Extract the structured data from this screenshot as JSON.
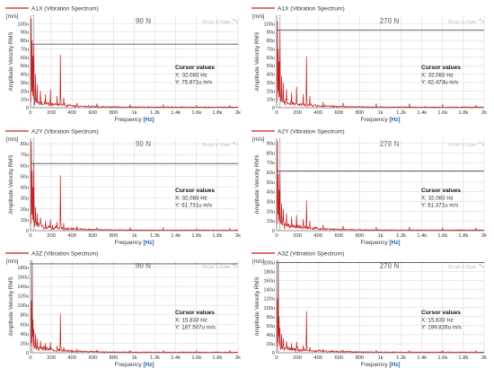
{
  "chart_data": [
    {
      "type": "line",
      "legend_label": "A1X (Vibration Spectrum)",
      "title": "90 N",
      "brand": "Brüel & Kjær",
      "unit": "[m/s]",
      "ylabel": "Amplitude Velocity RMS",
      "xlabel_prefix": "Frequency ",
      "xlabel_unit": "[Hz]",
      "xlim": [
        0,
        2000
      ],
      "ylim": [
        0,
        110
      ],
      "y_ticks": [
        0,
        10,
        20,
        30,
        40,
        50,
        60,
        70,
        80,
        90,
        100
      ],
      "y_tick_labels": [
        "0",
        "10u",
        "20u",
        "30u",
        "40u",
        "50u",
        "60u",
        "70u",
        "80u",
        "90u",
        "100u"
      ],
      "x_ticks": [
        0,
        200,
        400,
        600,
        800,
        1000,
        1200,
        1400,
        1600,
        1800,
        2000
      ],
      "x_tick_labels": [
        "0",
        "200",
        "400",
        "600",
        "800",
        "1k",
        "1.2k",
        "1.4k",
        "1.6k",
        "1.8k",
        "2k"
      ],
      "cursor": {
        "x": 32.083,
        "y": 75.671,
        "heading": "Cursor values",
        "x_text": "X: 32.083 Hz",
        "y_text": "Y: 75.671u m/s"
      },
      "peaks": [
        [
          8,
          106
        ],
        [
          16,
          80
        ],
        [
          24,
          62
        ],
        [
          32,
          75.7
        ],
        [
          48,
          40
        ],
        [
          64,
          28
        ],
        [
          96,
          20
        ],
        [
          144,
          16
        ],
        [
          192,
          22
        ],
        [
          256,
          14
        ],
        [
          288,
          63
        ],
        [
          320,
          12
        ],
        [
          448,
          6
        ],
        [
          640,
          5
        ],
        [
          960,
          4
        ],
        [
          1280,
          4
        ],
        [
          1600,
          3
        ],
        [
          1920,
          3
        ]
      ],
      "noise_level": 2.5
    },
    {
      "type": "line",
      "legend_label": "A1X (Vibration Spectrum)",
      "title": "270 N",
      "brand": "Brüel & Kjær",
      "unit": "[m/s]",
      "ylabel": "Amplitude Velocity RMS",
      "xlabel_prefix": "Frequency ",
      "xlabel_unit": "[Hz]",
      "xlim": [
        0,
        2000
      ],
      "ylim": [
        0,
        110
      ],
      "y_ticks": [
        0,
        10,
        20,
        30,
        40,
        50,
        60,
        70,
        80,
        90,
        100
      ],
      "y_tick_labels": [
        "0",
        "10u",
        "20u",
        "30u",
        "40u",
        "50u",
        "60u",
        "70u",
        "80u",
        "90u",
        "100u"
      ],
      "x_ticks": [
        0,
        200,
        400,
        600,
        800,
        1000,
        1200,
        1400,
        1600,
        1800,
        2000
      ],
      "x_tick_labels": [
        "0",
        "200",
        "400",
        "600",
        "800",
        "1k",
        "1.2k",
        "1.4k",
        "1.6k",
        "1.8k",
        "2k"
      ],
      "cursor": {
        "x": 32.083,
        "y": 92.473,
        "heading": "Cursor values",
        "x_text": "X: 32.083 Hz",
        "y_text": "Y: 92.473u m/s"
      },
      "peaks": [
        [
          8,
          103
        ],
        [
          16,
          70
        ],
        [
          24,
          55
        ],
        [
          32,
          92.5
        ],
        [
          48,
          38
        ],
        [
          64,
          30
        ],
        [
          96,
          22
        ],
        [
          144,
          18
        ],
        [
          192,
          25
        ],
        [
          256,
          16
        ],
        [
          288,
          61
        ],
        [
          320,
          14
        ],
        [
          448,
          7
        ],
        [
          640,
          6
        ],
        [
          960,
          5
        ],
        [
          1280,
          5
        ],
        [
          1600,
          4
        ],
        [
          1920,
          3
        ]
      ],
      "noise_level": 2.5
    },
    {
      "type": "line",
      "legend_label": "A2Y (Vibration Spectrum)",
      "title": "90 N",
      "brand": "Brüel & Kjær",
      "unit": "[m/s]",
      "ylabel": "Amplitude Velocity RMS",
      "xlabel_prefix": "Frequency ",
      "xlabel_unit": "[Hz]",
      "xlim": [
        0,
        2000
      ],
      "ylim": [
        0,
        85
      ],
      "y_ticks": [
        0,
        10,
        20,
        30,
        40,
        50,
        60,
        70,
        80
      ],
      "y_tick_labels": [
        "0",
        "10u",
        "20u",
        "30u",
        "40u",
        "50u",
        "60u",
        "70u",
        "80u"
      ],
      "x_ticks": [
        0,
        200,
        400,
        600,
        800,
        1000,
        1200,
        1400,
        1600,
        1800,
        2000
      ],
      "x_tick_labels": [
        "0",
        "200",
        "400",
        "600",
        "800",
        "1k",
        "1.2k",
        "1.4k",
        "1.6k",
        "1.8k",
        "2k"
      ],
      "cursor": {
        "x": 32.083,
        "y": 61.731,
        "heading": "Cursor values",
        "x_text": "X: 32.083 Hz",
        "y_text": "Y: 61.731u m/s"
      },
      "peaks": [
        [
          8,
          82
        ],
        [
          16,
          55
        ],
        [
          24,
          40
        ],
        [
          32,
          61.7
        ],
        [
          48,
          22
        ],
        [
          64,
          16
        ],
        [
          96,
          12
        ],
        [
          144,
          9
        ],
        [
          192,
          10
        ],
        [
          256,
          8
        ],
        [
          288,
          51
        ],
        [
          320,
          7
        ],
        [
          448,
          4
        ],
        [
          640,
          3
        ],
        [
          960,
          3
        ],
        [
          1280,
          3
        ],
        [
          1600,
          2
        ],
        [
          1920,
          2
        ]
      ],
      "noise_level": 1.8
    },
    {
      "type": "line",
      "legend_label": "A2Y (Vibration Spectrum)",
      "title": "270 N",
      "brand": "Brüel & Kjær",
      "unit": "[m/s]",
      "ylabel": "Amplitude Velocity RMS",
      "xlabel_prefix": "Frequency ",
      "xlabel_unit": "[Hz]",
      "xlim": [
        0,
        2000
      ],
      "ylim": [
        0,
        95
      ],
      "y_ticks": [
        0,
        10,
        20,
        30,
        40,
        50,
        60,
        70,
        80,
        90
      ],
      "y_tick_labels": [
        "0",
        "10u",
        "20u",
        "30u",
        "40u",
        "50u",
        "60u",
        "70u",
        "80u",
        "90u"
      ],
      "x_ticks": [
        0,
        200,
        400,
        600,
        800,
        1000,
        1200,
        1400,
        1600,
        1800,
        2000
      ],
      "x_tick_labels": [
        "0",
        "200",
        "400",
        "600",
        "800",
        "1k",
        "1.2k",
        "1.4k",
        "1.6k",
        "1.8k",
        "2k"
      ],
      "cursor": {
        "x": 32.083,
        "y": 61.371,
        "heading": "Cursor values",
        "x_text": "X: 32.083 Hz",
        "y_text": "Y: 61.371u m/s"
      },
      "peaks": [
        [
          8,
          92
        ],
        [
          16,
          58
        ],
        [
          24,
          42
        ],
        [
          32,
          61.4
        ],
        [
          48,
          28
        ],
        [
          64,
          22
        ],
        [
          96,
          18
        ],
        [
          144,
          14
        ],
        [
          192,
          16
        ],
        [
          256,
          12
        ],
        [
          288,
          31
        ],
        [
          320,
          10
        ],
        [
          448,
          6
        ],
        [
          640,
          5
        ],
        [
          960,
          4
        ],
        [
          1280,
          4
        ],
        [
          1600,
          3
        ],
        [
          1920,
          3
        ]
      ],
      "noise_level": 2.2
    },
    {
      "type": "line",
      "legend_label": "A3Z (Vibration Spectrum)",
      "title": "90 N",
      "brand": "Brüel & Kjær",
      "unit": "[m/s]",
      "ylabel": "Amplitude Velocity RMS",
      "xlabel_prefix": "Frequency ",
      "xlabel_unit": "[Hz]",
      "xlim": [
        0,
        2000
      ],
      "ylim": [
        0,
        195
      ],
      "y_ticks": [
        0,
        20,
        40,
        60,
        80,
        100,
        120,
        140,
        160,
        180
      ],
      "y_tick_labels": [
        "0",
        "20u",
        "40u",
        "60u",
        "80u",
        "100u",
        "120u",
        "140u",
        "160u",
        "180u"
      ],
      "x_ticks": [
        0,
        200,
        400,
        600,
        800,
        1000,
        1200,
        1400,
        1600,
        1800,
        2000
      ],
      "x_tick_labels": [
        "0",
        "200",
        "400",
        "600",
        "800",
        "1k",
        "1.2k",
        "1.4k",
        "1.6k",
        "1.8k",
        "2k"
      ],
      "cursor": {
        "x": 15.833,
        "y": 187.507,
        "heading": "Cursor values",
        "x_text": "X: 15.833 Hz",
        "y_text": "Y: 187.507u m/s"
      },
      "peaks": [
        [
          8,
          110
        ],
        [
          15.833,
          187.5
        ],
        [
          24,
          70
        ],
        [
          32,
          50
        ],
        [
          48,
          40
        ],
        [
          64,
          30
        ],
        [
          96,
          25
        ],
        [
          144,
          20
        ],
        [
          192,
          22
        ],
        [
          256,
          15
        ],
        [
          288,
          82
        ],
        [
          320,
          12
        ],
        [
          448,
          7
        ],
        [
          640,
          6
        ],
        [
          960,
          5
        ],
        [
          1280,
          5
        ],
        [
          1600,
          4
        ],
        [
          1920,
          4
        ]
      ],
      "noise_level": 4.0
    },
    {
      "type": "line",
      "legend_label": "A3Z (Vibration Spectrum)",
      "title": "270 N",
      "brand": "Brüel & Kjær",
      "unit": "[m/s]",
      "ylabel": "Amplitude Velocity RMS",
      "xlabel_prefix": "Frequency ",
      "xlabel_unit": "[Hz]",
      "xlim": [
        0,
        2000
      ],
      "ylim": [
        0,
        205
      ],
      "y_ticks": [
        0,
        20,
        40,
        60,
        80,
        100,
        120,
        140,
        160,
        180,
        200
      ],
      "y_tick_labels": [
        "0",
        "20u",
        "40u",
        "60u",
        "80u",
        "100u",
        "120u",
        "140u",
        "160u",
        "180u",
        "200u"
      ],
      "x_ticks": [
        0,
        200,
        400,
        600,
        800,
        1000,
        1200,
        1400,
        1600,
        1800,
        2000
      ],
      "x_tick_labels": [
        "0",
        "200",
        "400",
        "600",
        "800",
        "1k",
        "1.2k",
        "1.4k",
        "1.6k",
        "1.8k",
        "2k"
      ],
      "cursor": {
        "x": 15.833,
        "y": 199.826,
        "heading": "Cursor values",
        "x_text": "X: 15.833 Hz",
        "y_text": "Y: 199.826u m/s"
      },
      "peaks": [
        [
          8,
          120
        ],
        [
          15.833,
          199.8
        ],
        [
          24,
          80
        ],
        [
          32,
          55
        ],
        [
          48,
          42
        ],
        [
          64,
          32
        ],
        [
          96,
          26
        ],
        [
          144,
          21
        ],
        [
          192,
          24
        ],
        [
          256,
          16
        ],
        [
          288,
          92
        ],
        [
          320,
          13
        ],
        [
          448,
          8
        ],
        [
          640,
          7
        ],
        [
          960,
          6
        ],
        [
          1280,
          5
        ],
        [
          1600,
          5
        ],
        [
          1920,
          4
        ]
      ],
      "noise_level": 4.5
    }
  ],
  "colors": {
    "trace": "#cc1f1f",
    "cursor_line": "#505050",
    "grid": "#d4d4d4",
    "axis": "#7a7a7a",
    "text": "#333333",
    "title": "#8e8e8e",
    "unit_bracket": "#1e5aa8",
    "brand": "#b9c6d8"
  }
}
